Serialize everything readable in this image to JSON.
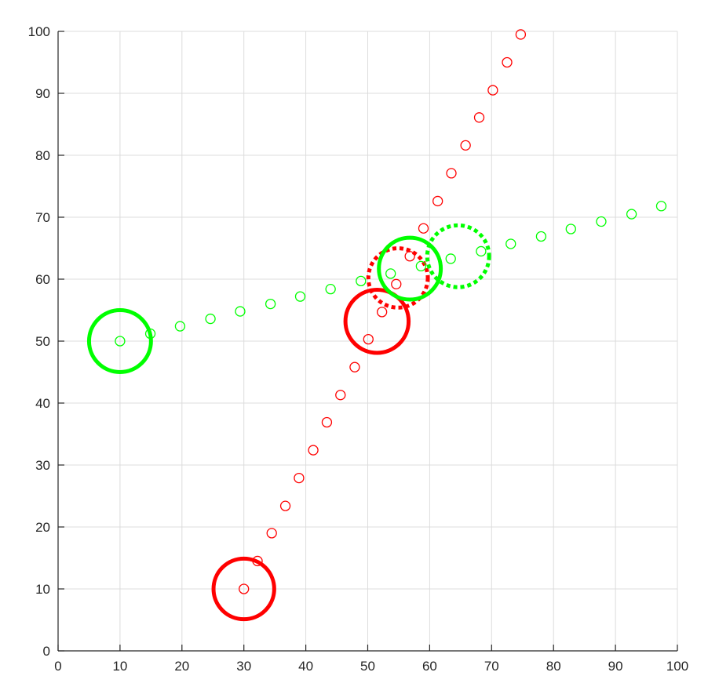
{
  "chart_data": {
    "type": "scatter",
    "xlim": [
      0,
      100
    ],
    "ylim": [
      0,
      100
    ],
    "x_ticks": [
      "0",
      "10",
      "20",
      "30",
      "40",
      "50",
      "60",
      "70",
      "80",
      "90",
      "100"
    ],
    "y_ticks": [
      "0",
      "10",
      "20",
      "30",
      "40",
      "50",
      "60",
      "70",
      "80",
      "90",
      "100"
    ],
    "grid": true,
    "axes": {
      "box": false
    },
    "colors": {
      "red": "#ff0000",
      "green": "#00ff00",
      "axis": "#262626",
      "grid": "#dcdcdc"
    },
    "series": [
      {
        "color": "red",
        "marker": "open-circle",
        "points": [
          [
            30.0,
            10.0
          ],
          [
            32.2,
            14.5
          ],
          [
            34.5,
            19.0
          ],
          [
            36.7,
            23.4
          ],
          [
            38.9,
            27.9
          ],
          [
            41.2,
            32.4
          ],
          [
            43.4,
            36.9
          ],
          [
            45.6,
            41.3
          ],
          [
            47.9,
            45.8
          ],
          [
            50.1,
            50.3
          ],
          [
            52.3,
            54.7
          ],
          [
            54.6,
            59.2
          ],
          [
            56.8,
            63.7
          ],
          [
            59.0,
            68.2
          ],
          [
            61.3,
            72.6
          ],
          [
            63.5,
            77.1
          ],
          [
            65.8,
            81.6
          ],
          [
            68.0,
            86.1
          ],
          [
            70.2,
            90.5
          ],
          [
            72.5,
            95.0
          ],
          [
            74.7,
            99.5
          ]
        ]
      },
      {
        "color": "green",
        "marker": "open-circle",
        "points": [
          [
            10.0,
            50.0
          ],
          [
            14.9,
            51.2
          ],
          [
            19.7,
            52.4
          ],
          [
            24.6,
            53.6
          ],
          [
            29.4,
            54.8
          ],
          [
            34.3,
            56.0
          ],
          [
            39.1,
            57.2
          ],
          [
            44.0,
            58.4
          ],
          [
            48.9,
            59.7
          ],
          [
            53.7,
            60.9
          ],
          [
            58.6,
            62.1
          ],
          [
            63.4,
            63.3
          ],
          [
            68.3,
            64.5
          ],
          [
            73.1,
            65.7
          ],
          [
            78.0,
            66.9
          ],
          [
            82.8,
            68.1
          ],
          [
            87.7,
            69.3
          ],
          [
            92.6,
            70.5
          ],
          [
            97.4,
            71.8
          ]
        ]
      }
    ],
    "circles": [
      {
        "color": "red",
        "style": "solid",
        "center": [
          30.0,
          10.0
        ],
        "radius": 4.9
      },
      {
        "color": "red",
        "style": "solid",
        "center": [
          51.5,
          53.2
        ],
        "radius": 5.1
      },
      {
        "color": "red",
        "style": "dotted",
        "center": [
          54.9,
          60.2
        ],
        "radius": 4.8
      },
      {
        "color": "green",
        "style": "solid",
        "center": [
          10.0,
          50.0
        ],
        "radius": 5.0
      },
      {
        "color": "green",
        "style": "solid",
        "center": [
          56.8,
          61.7
        ],
        "radius": 5.0
      },
      {
        "color": "green",
        "style": "dotted",
        "center": [
          64.6,
          63.7
        ],
        "radius": 5.0
      }
    ]
  }
}
